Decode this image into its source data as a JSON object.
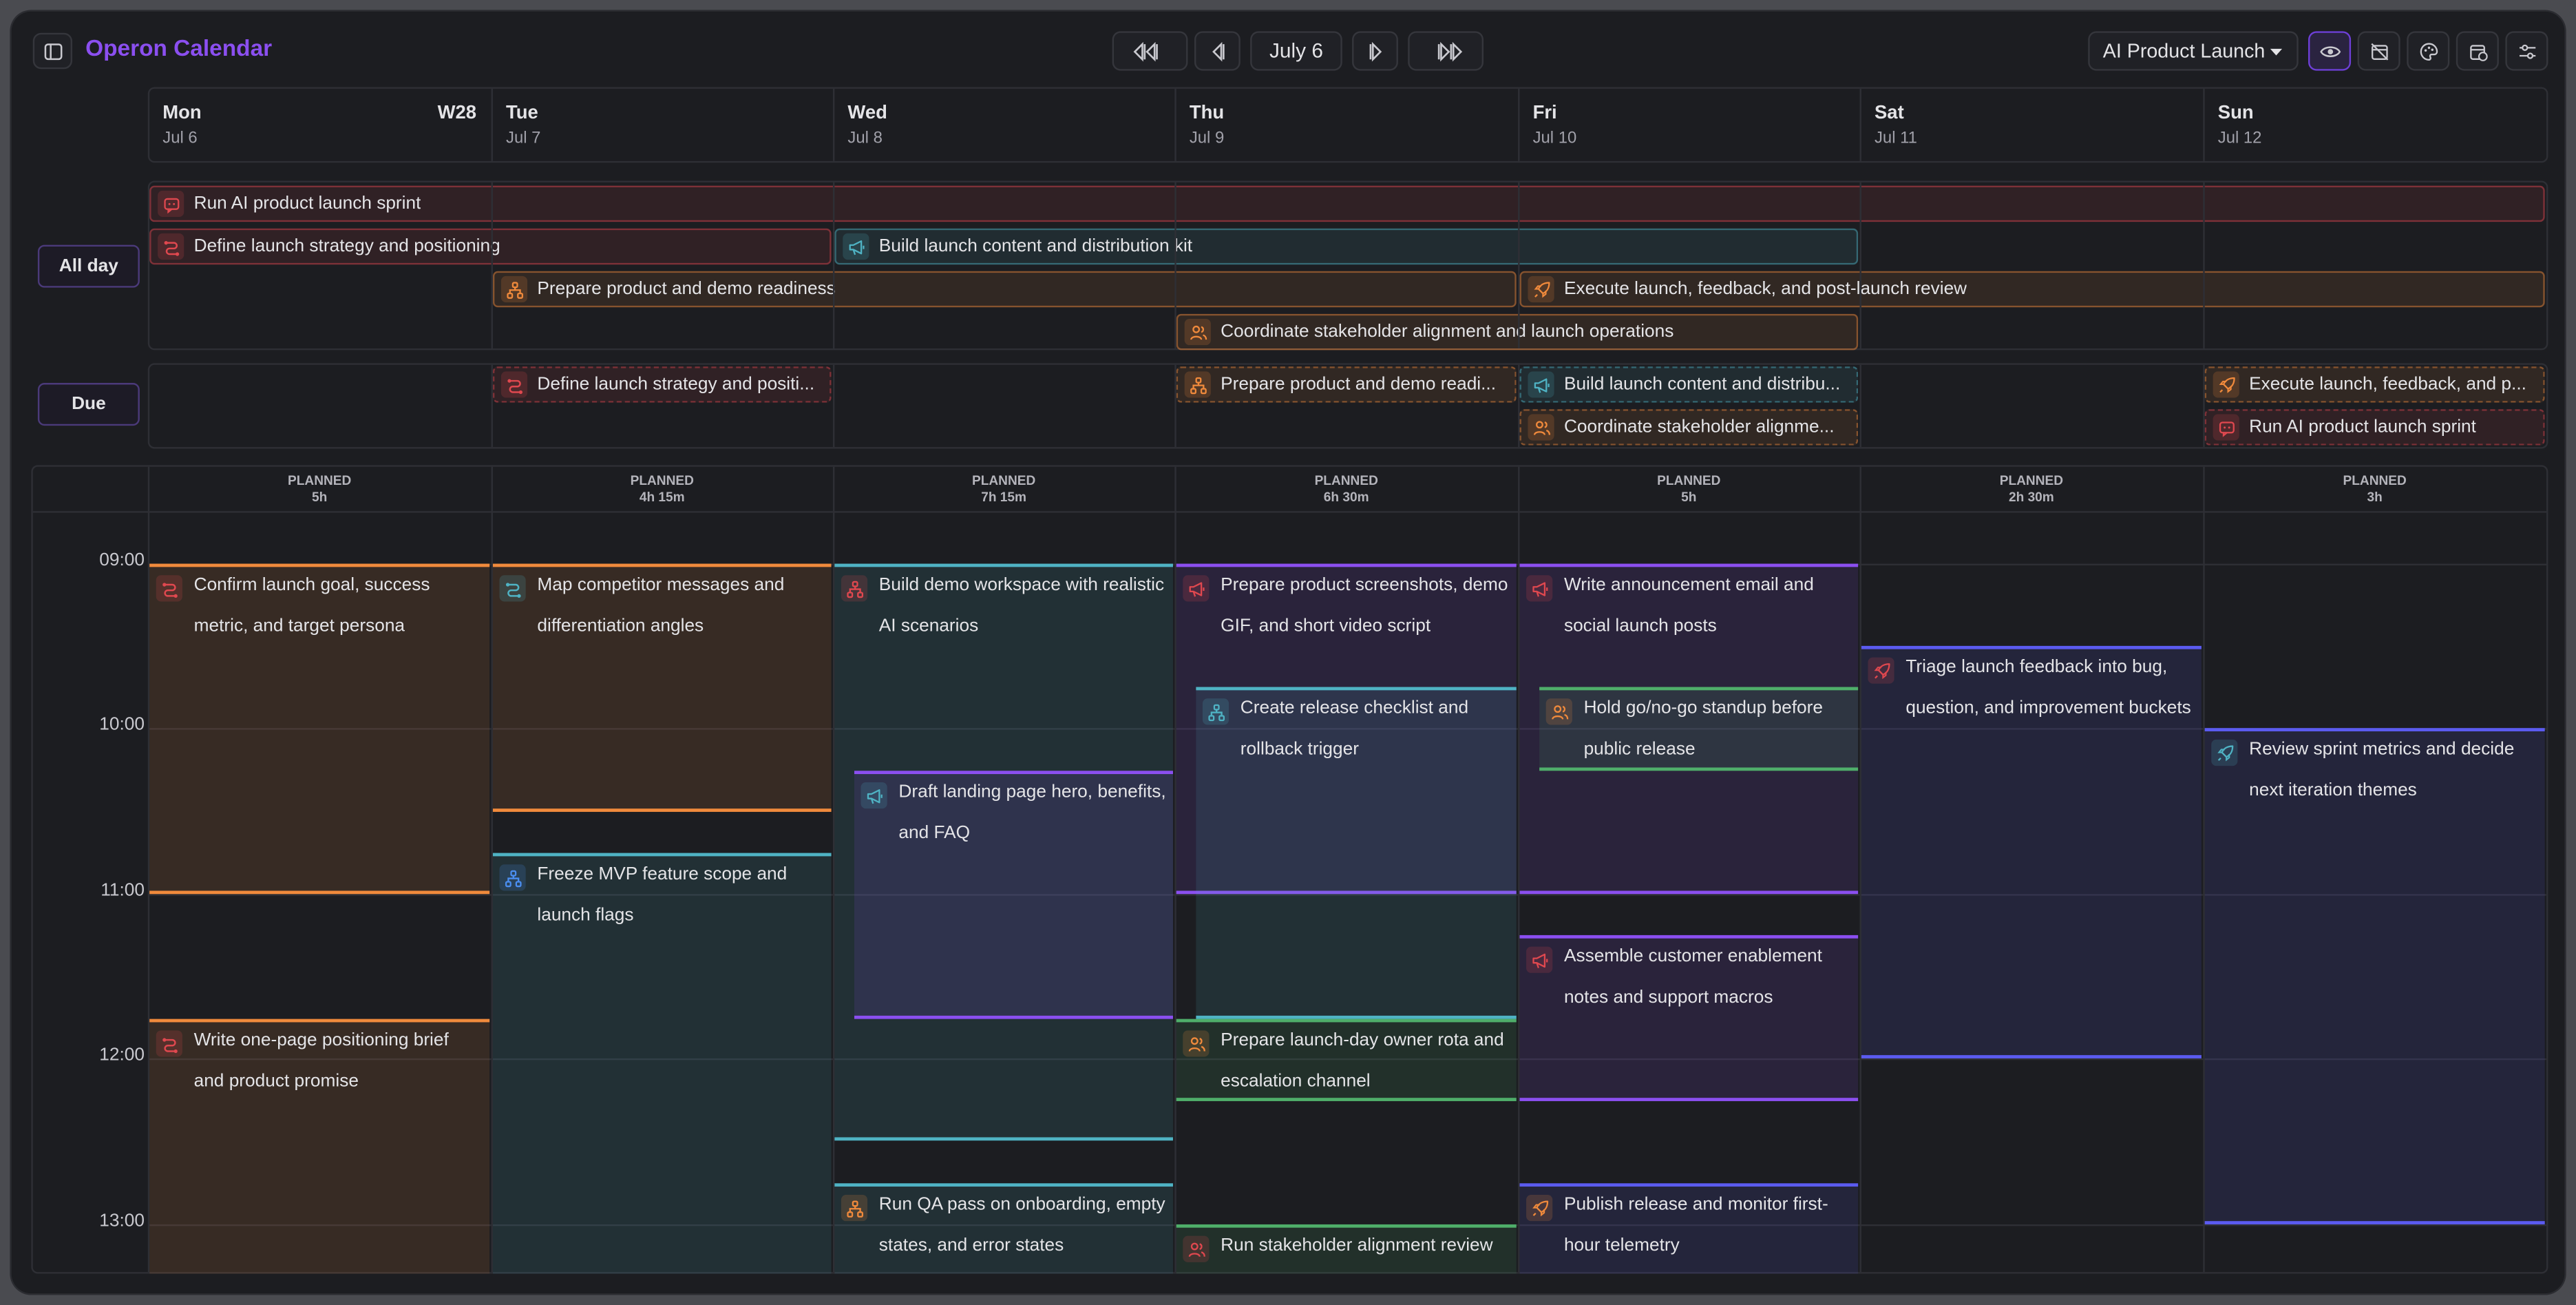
{
  "app": {
    "title": "Operon Calendar"
  },
  "toolbar": {
    "date_label": "July 6",
    "project": "AI Product Launch"
  },
  "week": {
    "number": "W28"
  },
  "days": [
    {
      "name": "Mon",
      "date": "Jul 6"
    },
    {
      "name": "Tue",
      "date": "Jul 7"
    },
    {
      "name": "Wed",
      "date": "Jul 8"
    },
    {
      "name": "Thu",
      "date": "Jul 9"
    },
    {
      "name": "Fri",
      "date": "Jul 10"
    },
    {
      "name": "Sat",
      "date": "Jul 11"
    },
    {
      "name": "Sun",
      "date": "Jul 12"
    }
  ],
  "side_labels": {
    "all_day": "All day",
    "due": "Due"
  },
  "colors": {
    "accent": "#8b4ff0",
    "red": "#e0484f",
    "orange": "#f08a3c",
    "teal": "#4fb3c4",
    "blue": "#4b8ef0",
    "purple": "#8b4ff0",
    "green": "#4fae6a",
    "indigo": "#5b5bf0"
  },
  "all_day_events": [
    {
      "title": "Run AI product launch sprint",
      "icon": "chat-icon",
      "color": "red"
    },
    {
      "title": "Define launch strategy and positioning",
      "icon": "route-icon",
      "color": "red"
    },
    {
      "title": "Build launch content and distribution kit",
      "icon": "megaphone-icon",
      "color": "teal"
    },
    {
      "title": "Prepare product and demo readiness",
      "icon": "hierarchy-icon",
      "color": "orange"
    },
    {
      "title": "Execute launch, feedback, and post-launch review",
      "icon": "rocket-icon",
      "color": "orange"
    },
    {
      "title": "Coordinate stakeholder alignment and launch operations",
      "icon": "users-icon",
      "color": "orange"
    }
  ],
  "due_events": [
    {
      "title": "Define launch strategy and positi...",
      "icon": "route-icon",
      "color": "red"
    },
    {
      "title": "Prepare product and demo readi...",
      "icon": "hierarchy-icon",
      "color": "orange"
    },
    {
      "title": "Build launch content and distribu...",
      "icon": "megaphone-icon",
      "color": "teal"
    },
    {
      "title": "Coordinate stakeholder alignme...",
      "icon": "users-icon",
      "color": "orange"
    },
    {
      "title": "Execute launch, feedback, and p...",
      "icon": "rocket-icon",
      "color": "orange"
    },
    {
      "title": "Run AI product launch sprint",
      "icon": "chat-icon",
      "color": "red"
    }
  ],
  "planned": [
    {
      "label": "PLANNED",
      "value": "5h"
    },
    {
      "label": "PLANNED",
      "value": "4h 15m"
    },
    {
      "label": "PLANNED",
      "value": "7h 15m"
    },
    {
      "label": "PLANNED",
      "value": "6h 30m"
    },
    {
      "label": "PLANNED",
      "value": "5h"
    },
    {
      "label": "PLANNED",
      "value": "2h 30m"
    },
    {
      "label": "PLANNED",
      "value": "3h"
    }
  ],
  "times": [
    "09:00",
    "10:00",
    "11:00",
    "12:00",
    "13:00"
  ],
  "events": [
    {
      "title": "Confirm launch goal, success metric, and target persona",
      "icon": "route-icon",
      "color": "red",
      "border": "orange"
    },
    {
      "title": "Write one-page positioning brief and product promise",
      "icon": "route-icon",
      "color": "red",
      "border": "orange"
    },
    {
      "title": "Map competitor messages and differentiation angles",
      "icon": "route-icon",
      "color": "teal",
      "border": "orange"
    },
    {
      "title": "Freeze MVP feature scope and launch flags",
      "icon": "hierarchy-icon",
      "color": "blue",
      "border": "teal"
    },
    {
      "title": "Build demo workspace with realistic AI scenarios",
      "icon": "hierarchy-icon",
      "color": "red",
      "border": "teal"
    },
    {
      "title": "Draft landing page hero, benefits, and FAQ",
      "icon": "megaphone-icon",
      "color": "teal",
      "border": "purple"
    },
    {
      "title": "Run QA pass on onboarding, empty states, and error states",
      "icon": "hierarchy-icon",
      "color": "orange",
      "border": "teal"
    },
    {
      "title": "Prepare product screenshots, demo GIF, and short video script",
      "icon": "megaphone-icon",
      "color": "red",
      "border": "purple"
    },
    {
      "title": "Create release checklist and rollback trigger",
      "icon": "hierarchy-icon",
      "color": "teal",
      "border": "teal"
    },
    {
      "title": "Prepare launch-day owner rota and escalation channel",
      "icon": "users-icon",
      "color": "orange",
      "border": "green"
    },
    {
      "title": "Run stakeholder alignment review",
      "icon": "users-icon",
      "color": "red",
      "border": "green"
    },
    {
      "title": "Write announcement email and social launch posts",
      "icon": "megaphone-icon",
      "color": "red",
      "border": "purple"
    },
    {
      "title": "Hold go/no-go standup before public release",
      "icon": "users-icon",
      "color": "orange",
      "border": "green"
    },
    {
      "title": "Assemble customer enablement notes and support macros",
      "icon": "megaphone-icon",
      "color": "red",
      "border": "purple"
    },
    {
      "title": "Publish release and monitor first-hour telemetry",
      "icon": "rocket-icon",
      "color": "orange",
      "border": "indigo"
    },
    {
      "title": "Triage launch feedback into bug, question, and improvement buckets",
      "icon": "rocket-icon",
      "color": "red",
      "border": "indigo"
    },
    {
      "title": "Review sprint metrics and decide next iteration themes",
      "icon": "rocket-icon",
      "color": "teal",
      "border": "indigo"
    }
  ]
}
